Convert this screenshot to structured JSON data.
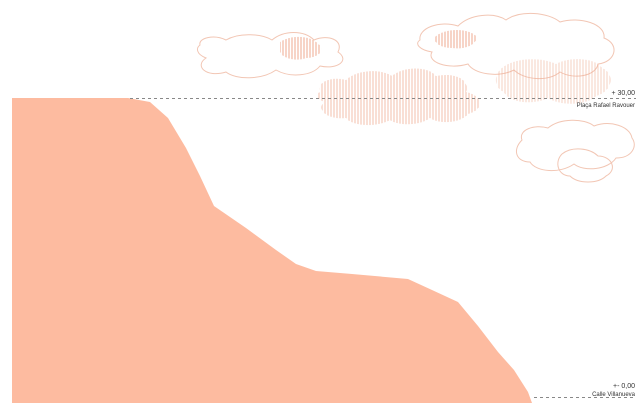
{
  "colors": {
    "terrain_fill": "#FDBBA0",
    "cloud_outline": "#F2C6B4",
    "cloud_hatch": "#EFA98F",
    "dashed_line": "#888888",
    "label_text": "#333333"
  },
  "levels": {
    "top": {
      "elevation": "+ 30,00",
      "name": "Plaça Rafael Ravouer"
    },
    "bottom": {
      "elevation": "+- 0,00",
      "name": "Calle Villanueva"
    }
  }
}
